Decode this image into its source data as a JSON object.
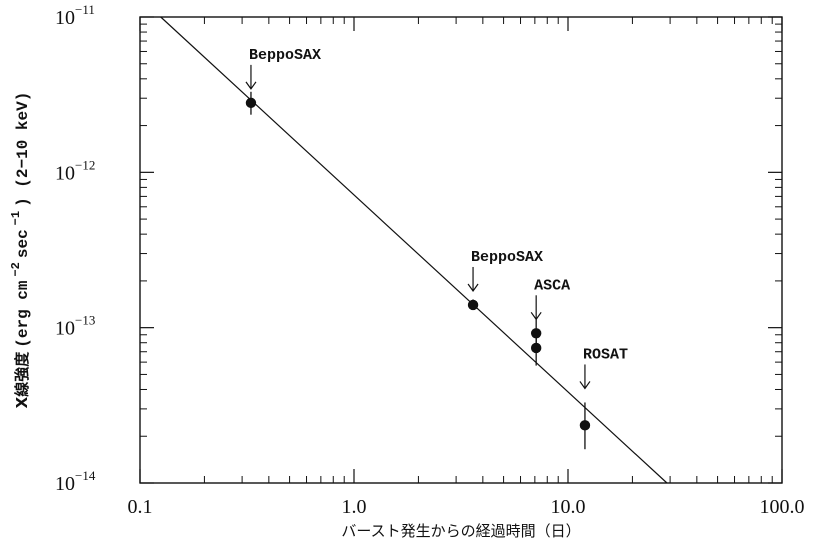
{
  "chart_data": {
    "type": "scatter",
    "xscale": "log",
    "yscale": "log",
    "xlim": [
      0.1,
      100.0
    ],
    "ylim": [
      1e-14,
      1e-11
    ],
    "xticks": [
      {
        "value": 0.1,
        "label": "0.1"
      },
      {
        "value": 1.0,
        "label": "1.0"
      },
      {
        "value": 10.0,
        "label": "10.0"
      },
      {
        "value": 100.0,
        "label": "100.0"
      }
    ],
    "yticks": [
      {
        "value": 1e-14,
        "base": "10",
        "exp": "−14"
      },
      {
        "value": 1e-13,
        "base": "10",
        "exp": "−13"
      },
      {
        "value": 1e-12,
        "base": "10",
        "exp": "−12"
      },
      {
        "value": 1e-11,
        "base": "10",
        "exp": "−11"
      }
    ],
    "xlabel": "バースト発生からの経過時間（日）",
    "ylabel": {
      "prefix": "X線強度",
      "units_part1": "(erg cm",
      "units_exp1": "−2",
      "units_part2": " sec",
      "units_exp2": "−1",
      "units_part3": " ) (2−10 keV)"
    },
    "points": [
      {
        "x": 0.33,
        "y": 2.8e-12,
        "err_low": 2.35e-12,
        "err_high": 3.3e-12
      },
      {
        "x": 3.6,
        "y": 1.4e-13,
        "err_low": 1.3e-13,
        "err_high": 1.52e-13
      },
      {
        "x": 7.1,
        "y": 9.2e-14,
        "err_low": 7.4e-14,
        "err_high": 1.13e-13
      },
      {
        "x": 7.1,
        "y": 7.4e-14,
        "err_low": 5.7e-14,
        "err_high": 9e-14
      },
      {
        "x": 12.0,
        "y": 2.35e-14,
        "err_low": 1.65e-14,
        "err_high": 3.3e-14
      }
    ],
    "fit_line": {
      "x": [
        0.125,
        29.0
      ],
      "y": [
        1e-11,
        1e-14
      ]
    },
    "annotations": [
      {
        "text": "BeppoSAX",
        "x": 0.33,
        "y": 2.8e-12
      },
      {
        "text": "BeppoSAX",
        "x": 3.6,
        "y": 1.4e-13
      },
      {
        "text": "ASCA",
        "x": 7.1,
        "y": 9.2e-14
      },
      {
        "text": "ROSAT",
        "x": 12.0,
        "y": 3.3e-14
      }
    ],
    "grid": false
  }
}
